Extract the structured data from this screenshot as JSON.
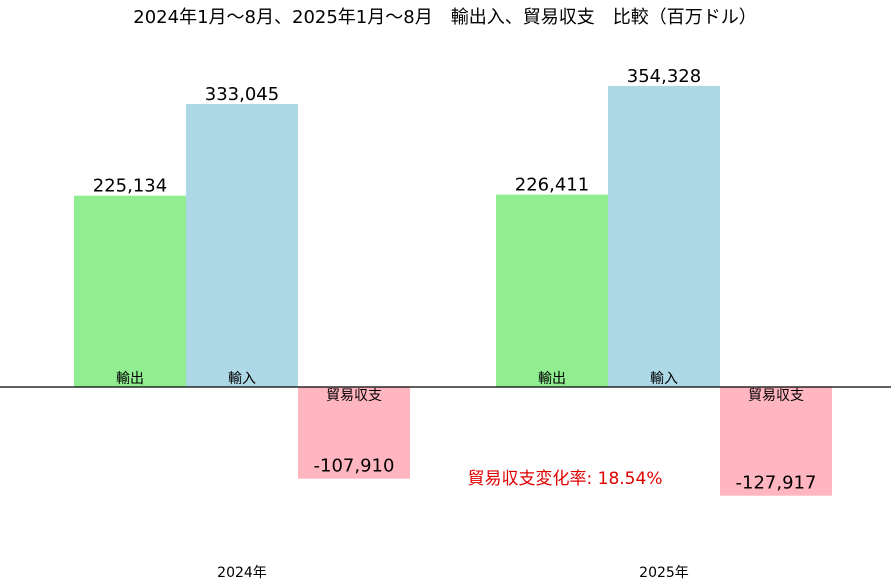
{
  "chart_data": {
    "type": "bar",
    "title": "2024年1月～8月、2025年1月～8月　輸出入、貿易収支　比較（百万ドル）",
    "categories": [
      "2024年",
      "2025年"
    ],
    "series": [
      {
        "name": "輸出",
        "values": [
          225134,
          226411
        ],
        "value_labels": [
          "225,134",
          "226,411"
        ],
        "color": "#90ee90"
      },
      {
        "name": "輸入",
        "values": [
          333045,
          354328
        ],
        "value_labels": [
          "333,045",
          "354,328"
        ],
        "color": "#add8e6"
      },
      {
        "name": "貿易収支",
        "values": [
          -107910,
          -127917
        ],
        "value_labels": [
          "-107,910",
          "-127,917"
        ],
        "color": "#ffb6c1"
      }
    ],
    "ylim": [
      -180000,
      370000
    ],
    "grid": false,
    "legend": "none",
    "zero_line": true,
    "annotation": {
      "text": "貿易収支変化率: 18.54%",
      "color": "#e00000"
    }
  }
}
